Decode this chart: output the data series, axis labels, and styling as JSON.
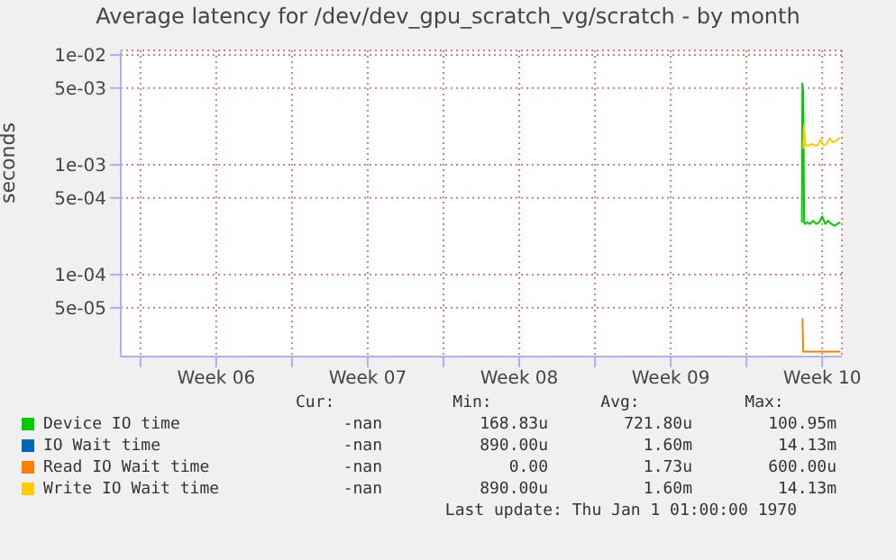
{
  "chart_data": {
    "type": "line",
    "title": "Average latency for /dev/dev_gpu_scratch_vg/scratch - by month",
    "ylabel": "seconds",
    "log": "y",
    "grid": true,
    "legend": "bottom",
    "marker": "none",
    "xlim": [
      "--02-02T02:10",
      "--03-07T09:50"
    ],
    "xticks": [
      {
        "value": "--02-03T00:00",
        "label": null
      },
      {
        "value": "--02-06T12:00",
        "label": "Week 06"
      },
      {
        "value": "--02-10T00:00",
        "label": null
      },
      {
        "value": "--02-13T12:00",
        "label": "Week 07"
      },
      {
        "value": "--02-17T00:00",
        "label": null
      },
      {
        "value": "--02-20T12:00",
        "label": "Week 08"
      },
      {
        "value": "--02-24T00:00",
        "label": null
      },
      {
        "value": "--02-27T12:00",
        "label": "Week 09"
      },
      {
        "value": "--03-03T00:00",
        "label": null
      },
      {
        "value": "--03-06T12:00",
        "label": "Week 10"
      }
    ],
    "ylim": [
      1.8e-05,
      0.011
    ],
    "yticks": [
      {
        "value": 0.01,
        "label": "1e-02"
      },
      {
        "value": 0.005,
        "label": "5e-03"
      },
      {
        "value": 0.001,
        "label": "1e-03"
      },
      {
        "value": 0.0005,
        "label": "5e-04"
      },
      {
        "value": 0.0001,
        "label": "1e-04"
      },
      {
        "value": 5e-05,
        "label": "5e-05"
      }
    ],
    "series": [
      {
        "name": "Device IO time",
        "color": "#00cc00",
        "x": [
          "--03-05T13:30",
          "--03-05T14:00",
          "--03-05T15:00",
          "--03-05T16:00",
          "--03-05T17:00",
          "--03-05T19:10",
          "--03-05T22:30",
          "--03-06T01:50",
          "--03-06T05:20",
          "--03-06T08:40",
          "--03-06T12:00",
          "--03-06T15:20",
          "--03-06T18:40",
          "--03-06T22:00",
          "--03-07T01:30",
          "--03-07T04:50",
          "--03-07T08:10"
        ],
        "values": [
          0.0003,
          0.0055,
          0.0045,
          0.0003,
          0.00029,
          0.0003,
          0.00029,
          0.00031,
          0.00029,
          0.0003,
          0.00034,
          0.00029,
          0.00031,
          0.00029,
          0.00028,
          0.00029,
          0.0003
        ]
      },
      {
        "name": "IO Wait time",
        "color": "#0066b3"
      },
      {
        "name": "Read IO Wait time",
        "color": "#ff8000",
        "x": [
          "--03-05T14:10",
          "--03-05T15:00",
          "--03-05T17:30",
          "--03-07T08:10"
        ],
        "values": [
          4e-05,
          2e-05,
          2e-05,
          2e-05
        ]
      },
      {
        "name": "Write IO Wait time",
        "color": "#ffcc00",
        "x": [
          "--03-05T15:00",
          "--03-05T15:50",
          "--03-05T17:30",
          "--03-05T20:50",
          "--03-06T00:10",
          "--03-06T03:40",
          "--03-06T07:00",
          "--03-06T10:20",
          "--03-06T13:40",
          "--03-06T17:00",
          "--03-06T20:20",
          "--03-06T23:50",
          "--03-07T03:10",
          "--03-07T06:30",
          "--03-07T08:10"
        ],
        "values": [
          0.0014,
          0.0023,
          0.0015,
          0.0015,
          0.00155,
          0.0015,
          0.0015,
          0.0017,
          0.0015,
          0.00155,
          0.00175,
          0.0016,
          0.00165,
          0.00175,
          0.00175
        ]
      }
    ],
    "annotations": [
      "Cur:",
      "Min:",
      "Avg:",
      "Max:",
      "-nan",
      "168.83u",
      "721.80u",
      "100.95m",
      "-nan",
      "890.00u",
      "1.60m",
      "14.13m",
      "-nan",
      "0.00",
      "1.73u",
      "600.00u",
      "-nan",
      "890.00u",
      "1.60m",
      "14.13m",
      "Last update: Thu Jan  1 01:00:00 1970"
    ]
  }
}
